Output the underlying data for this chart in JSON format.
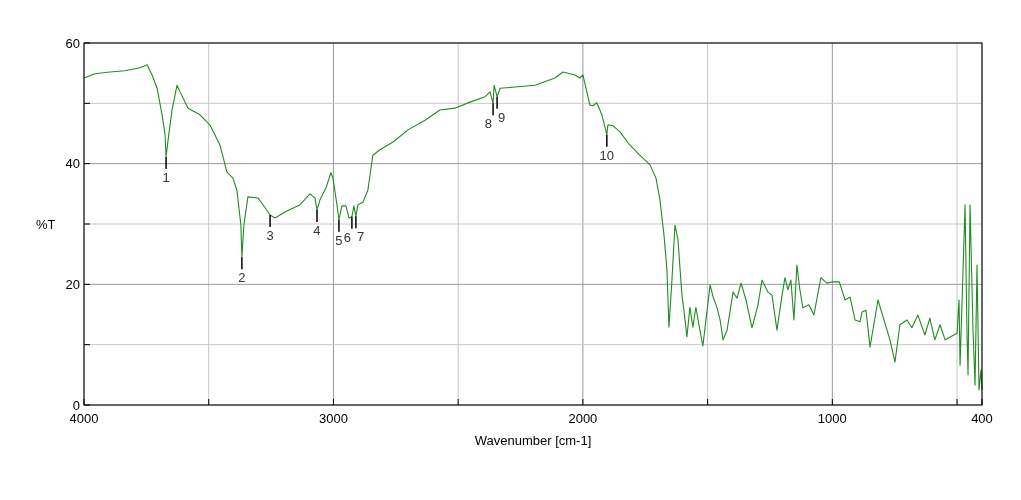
{
  "chart_data": {
    "type": "line",
    "xlabel": "Wavenumber [cm-1]",
    "ylabel": "%T",
    "xlim": [
      4000,
      400
    ],
    "ylim": [
      0,
      60
    ],
    "xticks": [
      4000,
      {
        "value": 3500,
        "label": null
      },
      3000,
      {
        "value": 2500,
        "label": null
      },
      2000,
      {
        "value": 1500,
        "label": null
      },
      1000,
      {
        "value": 500,
        "label": null
      },
      400
    ],
    "yticks": [
      0,
      {
        "value": 10,
        "label": null
      },
      20,
      {
        "value": 30,
        "label": null
      },
      40,
      {
        "value": 50,
        "label": null
      },
      60
    ],
    "grid": true,
    "marker": "none",
    "line_style": "solid",
    "series": [
      {
        "color": "#228b22",
        "x": [
          4000,
          3956,
          3896,
          3836,
          3776,
          3747,
          3727,
          3707,
          3687,
          3675,
          3671,
          3663,
          3647,
          3627,
          3615,
          3583,
          3535,
          3495,
          3455,
          3427,
          3403,
          3387,
          3371,
          3367,
          3359,
          3343,
          3302,
          3274,
          3254,
          3234,
          3194,
          3134,
          3094,
          3074,
          3066,
          3054,
          3030,
          3010,
          3002,
          2986,
          2978,
          2966,
          2950,
          2938,
          2926,
          2918,
          2910,
          2902,
          2882,
          2862,
          2842,
          2814,
          2761,
          2701,
          2633,
          2573,
          2513,
          2453,
          2392,
          2372,
          2364,
          2360,
          2356,
          2344,
          2332,
          2272,
          2192,
          2112,
          2080,
          2032,
          2012,
          2000,
          1972,
          1960,
          1944,
          1924,
          1904,
          1900,
          1880,
          1852,
          1812,
          1772,
          1731,
          1707,
          1691,
          1675,
          1663,
          1655,
          1643,
          1631,
          1619,
          1603,
          1595,
          1583,
          1571,
          1559,
          1547,
          1531,
          1519,
          1490,
          1478,
          1462,
          1450,
          1438,
          1422,
          1398,
          1382,
          1366,
          1346,
          1322,
          1298,
          1282,
          1258,
          1242,
          1222,
          1202,
          1190,
          1178,
          1166,
          1154,
          1142,
          1130,
          1118,
          1094,
          1074,
          1046,
          1022,
          1002,
          972,
          949,
          929,
          909,
          889,
          881,
          865,
          849,
          817,
          769,
          749,
          729,
          701,
          681,
          657,
          629,
          609,
          589,
          568,
          548,
          500,
          492,
          488,
          476,
          468,
          460,
          456,
          448,
          436,
          428,
          420,
          412,
          404,
          400
        ],
        "values": [
          54.2,
          54.9,
          55.2,
          55.4,
          55.9,
          56.4,
          54.7,
          52.5,
          48.1,
          44.8,
          41.1,
          43.9,
          48.9,
          53.0,
          51.9,
          49.2,
          48.1,
          46.4,
          43.1,
          38.6,
          37.6,
          35.6,
          29.8,
          24.5,
          29.8,
          34.5,
          34.3,
          32.7,
          31.5,
          31.0,
          32.0,
          33.2,
          35.0,
          34.3,
          32.3,
          34.0,
          36.0,
          38.5,
          37.6,
          33.2,
          30.7,
          33.0,
          33.0,
          31.0,
          31.2,
          33.0,
          31.3,
          33.2,
          33.6,
          35.6,
          41.4,
          42.3,
          43.6,
          45.6,
          47.2,
          48.9,
          49.2,
          50.2,
          51.1,
          51.9,
          50.6,
          50.0,
          53.0,
          51.1,
          52.5,
          52.7,
          53.0,
          54.2,
          55.2,
          54.7,
          54.2,
          54.7,
          49.7,
          49.6,
          50.1,
          48.1,
          44.8,
          46.4,
          46.3,
          45.3,
          43.1,
          41.4,
          39.8,
          37.6,
          34.0,
          28.2,
          22.4,
          12.9,
          20.7,
          29.8,
          27.5,
          18.2,
          15.7,
          11.3,
          16.2,
          12.9,
          16.2,
          12.4,
          9.8,
          19.9,
          17.9,
          16.1,
          14.1,
          10.8,
          12.4,
          18.7,
          17.7,
          20.2,
          17.4,
          12.8,
          16.6,
          20.7,
          18.7,
          18.2,
          12.4,
          18.1,
          21.1,
          19.1,
          20.7,
          14.1,
          23.2,
          19.1,
          16.1,
          16.6,
          14.9,
          21.1,
          20.2,
          20.4,
          20.4,
          17.4,
          17.9,
          14.1,
          13.8,
          15.4,
          15.7,
          9.6,
          17.4,
          10.8,
          7.1,
          13.3,
          14.1,
          12.8,
          14.9,
          11.6,
          14.4,
          10.8,
          13.3,
          10.8,
          11.9,
          17.4,
          6.6,
          22.4,
          33.2,
          11.6,
          5.0,
          33.2,
          12.4,
          3.3,
          23.2,
          2.5,
          5.8,
          2.5
        ]
      }
    ],
    "annotations": [
      {
        "text": "1",
        "x": 3671,
        "y": 41.1
      },
      {
        "text": "2",
        "x": 3367,
        "y": 24.5
      },
      {
        "text": "3",
        "x": 3254,
        "y": 31.5
      },
      {
        "text": "4",
        "x": 3066,
        "y": 32.3
      },
      {
        "text": "5",
        "x": 2978,
        "y": 30.7
      },
      {
        "text": "6",
        "x": 2926,
        "y": 31.2
      },
      {
        "text": "7",
        "x": 2910,
        "y": 31.3
      },
      {
        "text": "8",
        "x": 2360,
        "y": 50.0
      },
      {
        "text": "9",
        "x": 2344,
        "y": 51.1
      },
      {
        "text": "10",
        "x": 1904,
        "y": 44.8
      }
    ]
  }
}
